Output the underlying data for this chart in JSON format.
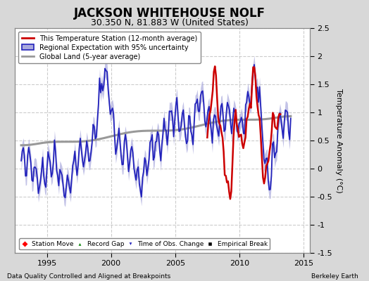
{
  "title": "JACKSON WHITEHOUSE NOLF",
  "subtitle": "30.350 N, 81.883 W (United States)",
  "ylabel": "Temperature Anomaly (°C)",
  "xlabel_left": "Data Quality Controlled and Aligned at Breakpoints",
  "xlabel_right": "Berkeley Earth",
  "ylim": [
    -1.5,
    2.5
  ],
  "xlim": [
    1992.5,
    2015.5
  ],
  "yticks": [
    -1.5,
    -1.0,
    -0.5,
    0.0,
    0.5,
    1.0,
    1.5,
    2.0,
    2.5
  ],
  "xticks": [
    1995,
    2000,
    2005,
    2010,
    2015
  ],
  "background_color": "#d8d8d8",
  "plot_background_color": "#ffffff",
  "grid_color": "#cccccc",
  "legend1_entries": [
    "This Temperature Station (12-month average)",
    "Regional Expectation with 95% uncertainty",
    "Global Land (5-year average)"
  ],
  "legend2_entries": [
    "Station Move",
    "Record Gap",
    "Time of Obs. Change",
    "Empirical Break"
  ],
  "regional_color": "#2222bb",
  "regional_fill_color": "#aaaadd",
  "station_color": "#cc0000",
  "global_color": "#999999",
  "title_fontsize": 12,
  "subtitle_fontsize": 9,
  "tick_fontsize": 8,
  "label_fontsize": 7
}
